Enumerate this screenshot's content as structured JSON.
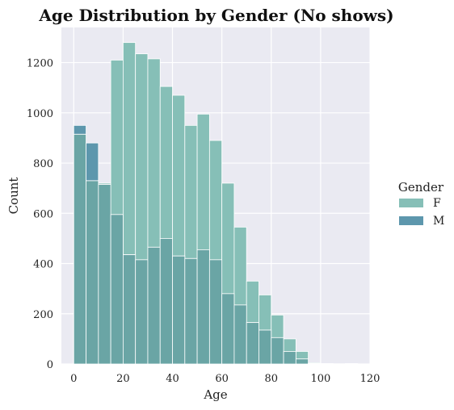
{
  "chart_data": {
    "type": "bar",
    "title": "Age Distribution by Gender (No shows)",
    "xlabel": "Age",
    "ylabel": "Count",
    "xlim": [
      -5,
      120
    ],
    "ylim": [
      0,
      1340
    ],
    "xticks": [
      0,
      20,
      40,
      60,
      80,
      100,
      120
    ],
    "yticks": [
      0,
      200,
      400,
      600,
      800,
      1000,
      1200
    ],
    "grid": true,
    "background": "#eaeaf2",
    "bin_edges": [
      0,
      5,
      10,
      15,
      20,
      25,
      30,
      35,
      40,
      45,
      50,
      55,
      60,
      65,
      70,
      75,
      80,
      85,
      90,
      95,
      100,
      105,
      110,
      115
    ],
    "legend": {
      "title": "Gender",
      "position": "right"
    },
    "series": [
      {
        "name": "F",
        "color": "#86bfb7",
        "values": [
          915,
          730,
          720,
          1210,
          1280,
          1235,
          1215,
          1105,
          1070,
          950,
          995,
          890,
          720,
          545,
          330,
          275,
          195,
          100,
          50,
          5,
          2,
          1,
          2
        ]
      },
      {
        "name": "M",
        "color": "#5d97ad",
        "values": [
          950,
          880,
          715,
          595,
          435,
          415,
          465,
          500,
          430,
          420,
          455,
          415,
          280,
          235,
          165,
          135,
          105,
          50,
          20,
          2,
          1,
          0,
          1
        ]
      }
    ],
    "overlap_color": "#6aa5a5"
  }
}
